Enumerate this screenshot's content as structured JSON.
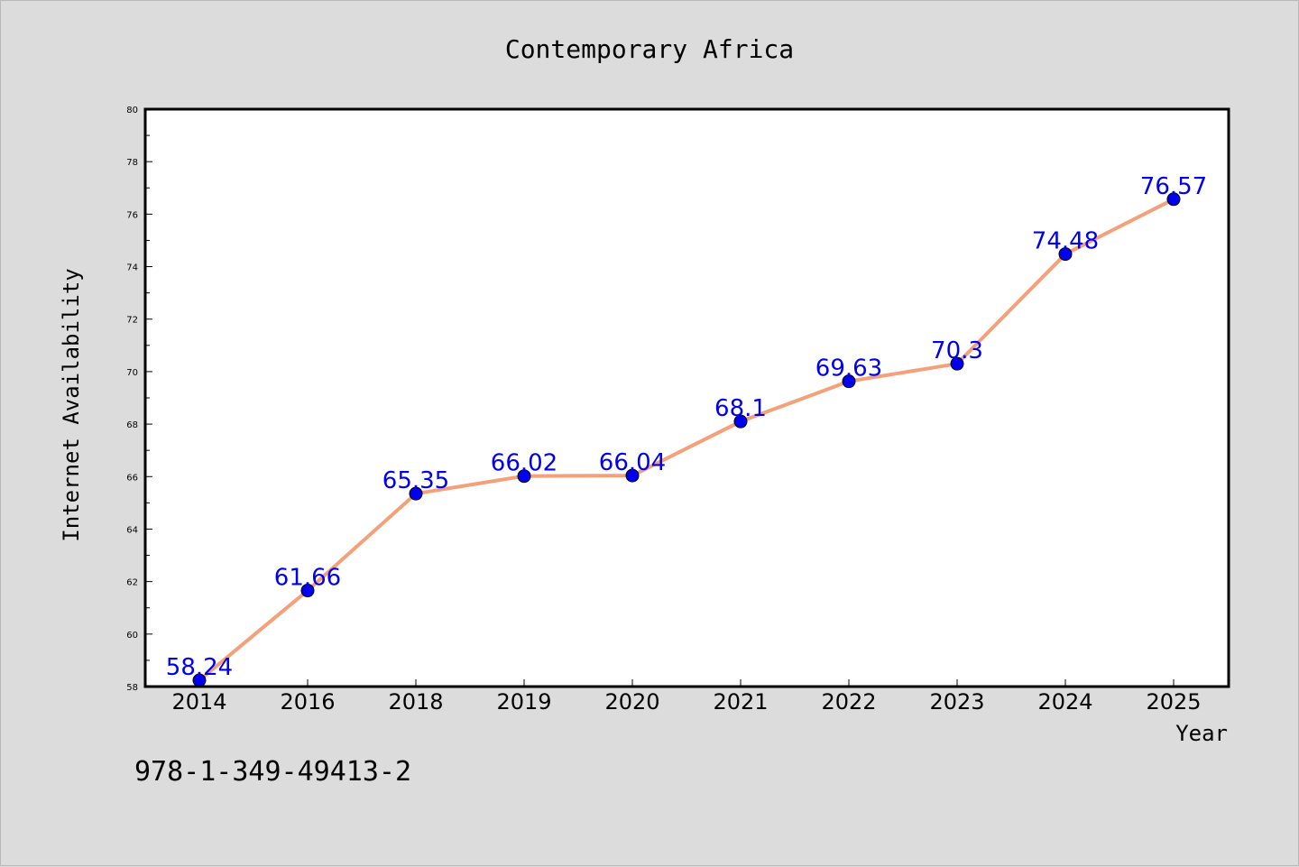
{
  "chart_data": {
    "type": "line",
    "title": "Contemporary Africa",
    "xlabel": "Year",
    "ylabel": "Internet Availability",
    "categories": [
      "2014",
      "2016",
      "2018",
      "2019",
      "2020",
      "2021",
      "2022",
      "2023",
      "2024",
      "2025"
    ],
    "series": [
      {
        "values": [
          58.24,
          61.66,
          65.35,
          66.02,
          66.04,
          68.1,
          69.63,
          70.3,
          74.48,
          76.57
        ],
        "labels": [
          "58.24",
          "61.66",
          "65.35",
          "66.02",
          "66.04",
          "68.1",
          "69.63",
          "70.3",
          "74.48",
          "76.57"
        ]
      }
    ],
    "ylim": [
      58,
      80
    ],
    "yticks": [
      "58",
      "60",
      "62",
      "64",
      "66",
      "68",
      "70",
      "72",
      "74",
      "76",
      "78",
      "80"
    ],
    "grid": false,
    "line_color": "#f4a07a",
    "marker_color": "#0000ee",
    "label_color": "#0000ee"
  },
  "footer_text": "978-1-349-49413-2"
}
